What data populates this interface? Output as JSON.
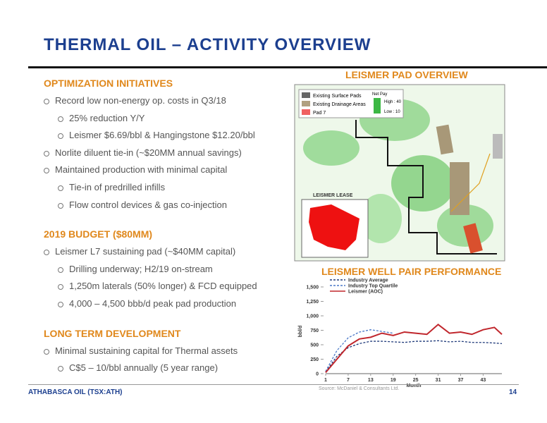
{
  "header": {
    "title": "THERMAL OIL – ACTIVITY OVERVIEW"
  },
  "sections": [
    {
      "heading": "OPTIMIZATION INITIATIVES",
      "bullets": [
        {
          "text": "Record low non-energy op. costs in Q3/18",
          "level": 1
        },
        {
          "text": "25% reduction Y/Y",
          "level": 2
        },
        {
          "text": "Leismer $6.69/bbl & Hangingstone $12.20/bbl",
          "level": 2
        },
        {
          "text": "Norlite diluent tie-in (~$20MM annual savings)",
          "level": 1
        },
        {
          "text": "Maintained production with minimal capital",
          "level": 1
        },
        {
          "text": "Tie-in of predrilled infills",
          "level": 2
        },
        {
          "text": "Flow control devices & gas co-injection",
          "level": 2
        }
      ]
    },
    {
      "heading": "2019 BUDGET ($80MM)",
      "bullets": [
        {
          "text": "Leismer L7 sustaining pad (~$40MM capital)",
          "level": 1
        },
        {
          "text": "Drilling underway; H2/19 on-stream",
          "level": 2
        },
        {
          "text": "1,250m laterals (50% longer) & FCD equipped",
          "level": 2
        },
        {
          "text": "4,000 – 4,500 bbb/d peak pad production",
          "level": 2
        }
      ]
    },
    {
      "heading": "LONG TERM DEVELOPMENT",
      "bullets": [
        {
          "text": "Minimal sustaining capital for Thermal assets",
          "level": 1
        },
        {
          "text": "C$5 – 10/bbl annually (5 year range)",
          "level": 2
        }
      ]
    }
  ],
  "map": {
    "title": "LEISMER PAD OVERVIEW",
    "legend": [
      "Existing Surface Pads",
      "Existing Drainage Areas",
      "Pad 7"
    ],
    "net_pay": "Net Pay",
    "high": "High : 40",
    "low": "Low : 10",
    "lease_label": "LEISMER LEASE"
  },
  "chart_data": {
    "type": "line",
    "title": "LEISMER WELL PAIR PERFORMANCE",
    "y_label": "bbl/d",
    "x_label": "Month",
    "x": [
      1,
      4,
      7,
      10,
      13,
      16,
      19,
      22,
      25,
      28,
      31,
      34,
      37,
      40,
      43,
      46,
      48
    ],
    "xlim": [
      1,
      48
    ],
    "xticks": [
      1,
      7,
      13,
      19,
      25,
      31,
      37,
      43
    ],
    "ylim": [
      0,
      1500
    ],
    "yticks": [
      0,
      250,
      500,
      750,
      {
        "value": 1000,
        "label": "1,000"
      },
      {
        "value": 1250,
        "label": "1,250"
      },
      {
        "value": 1500,
        "label": "1,500"
      }
    ],
    "series": [
      {
        "name": "Industry Average",
        "color": "#1f3a7a",
        "dash": true,
        "values": [
          30,
          300,
          450,
          520,
          560,
          560,
          550,
          540,
          560,
          560,
          570,
          550,
          560,
          540,
          540,
          530,
          520
        ]
      },
      {
        "name": "Industry Top Quartile",
        "color": "#4a78c8",
        "dash": true,
        "values": [
          40,
          400,
          620,
          720,
          760,
          730,
          700,
          null,
          null,
          null,
          null,
          null,
          null,
          null,
          null,
          null,
          null
        ]
      },
      {
        "name": "Leismer (AOC)",
        "color": "#c0262c",
        "dash": false,
        "values": [
          20,
          250,
          480,
          600,
          630,
          700,
          660,
          720,
          700,
          680,
          850,
          700,
          720,
          680,
          760,
          800,
          680
        ]
      }
    ]
  },
  "footer": {
    "company": "ATHABASCA OIL (TSX:ATH)",
    "source": "Source: McDaniel & Consultants Ltd.",
    "page": 14
  }
}
